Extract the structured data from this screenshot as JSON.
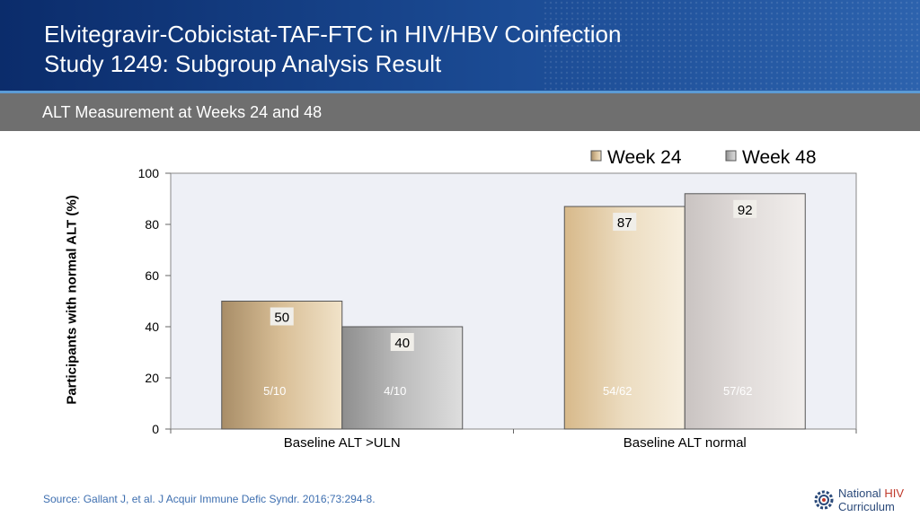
{
  "header": {
    "title_line1": "Elvitegravir-Cobicistat-TAF-FTC in HIV/HBV Coinfection",
    "title_line2": "Study 1249: Subgroup Analysis Result"
  },
  "subtitle": "ALT Measurement at Weeks 24 and 48",
  "source": "Source: Gallant J, et al. J Acquir Immune Defic Syndr. 2016;73:294-8.",
  "logo": {
    "name": "National",
    "highlight": "HIV",
    "line2": "Curriculum"
  },
  "colors": {
    "week24": "#c8a87c",
    "week48": "#a8a8a8",
    "plot_bg": "#eef0f6",
    "header": "#1b4b94",
    "source": "#3e6fb0"
  },
  "chart_data": {
    "type": "bar",
    "categories": [
      "Baseline ALT >ULN",
      "Baseline ALT normal"
    ],
    "series": [
      {
        "name": "Week 24",
        "values": [
          50,
          87
        ],
        "fractions": [
          "5/10",
          "54/62"
        ]
      },
      {
        "name": "Week 48",
        "values": [
          40,
          92
        ],
        "fractions": [
          "4/10",
          "57/62"
        ]
      }
    ],
    "ylabel": "Participants with normal ALT (%)",
    "ylim": [
      0,
      100
    ],
    "yticks": [
      0,
      20,
      40,
      60,
      80,
      100
    ],
    "legend": "top-right",
    "grid": false
  }
}
